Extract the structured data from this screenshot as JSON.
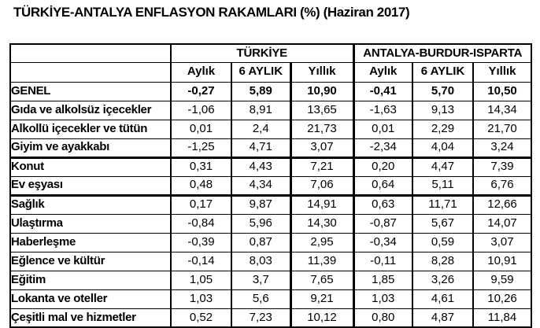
{
  "title": "TÜRKİYE-ANTALYA ENFLASYON RAKAMLARI (%) (Haziran 2017)",
  "colors": {
    "text": "#000000",
    "border": "#000000",
    "background": "#ffffff"
  },
  "table": {
    "group_headers": [
      "TÜRKİYE",
      "ANTALYA-BURDUR-ISPARTA"
    ],
    "sub_headers": [
      "Aylık",
      "6 AYLIK",
      "Yıllık",
      "Aylık",
      "6 AYLIK",
      "Yıllık"
    ],
    "rows": [
      {
        "label": "GENEL",
        "bold": true,
        "values": [
          "-0,27",
          "5,89",
          "10,90",
          "-0,41",
          "5,70",
          "10,50"
        ]
      },
      {
        "label": "Gıda ve alkolsüz içecekler",
        "values": [
          "-1,06",
          "8,91",
          "13,65",
          "-1,63",
          "9,13",
          "14,34"
        ]
      },
      {
        "label": "Alkollü içecekler ve tütün",
        "values": [
          "0,01",
          "2,4",
          "21,73",
          "0,01",
          "2,29",
          "21,70"
        ]
      },
      {
        "label": "Giyim ve ayakkabı",
        "values": [
          "-1,25",
          "4,71",
          "3,07",
          "-2,34",
          "4,04",
          "3,24"
        ]
      },
      {
        "label": "Konut",
        "values": [
          "0,31",
          "4,43",
          "7,21",
          "0,20",
          "4,47",
          "7,39"
        ]
      },
      {
        "label": "Ev eşyası",
        "values": [
          "0,48",
          "4,34",
          "7,06",
          "0,64",
          "5,11",
          "6,76"
        ]
      },
      {
        "label": "Sağlık",
        "values": [
          "0,17",
          "9,87",
          "14,91",
          "0,63",
          "11,71",
          "12,66"
        ]
      },
      {
        "label": "Ulaştırma",
        "values": [
          "-0,84",
          "5,96",
          "14,30",
          "-0,87",
          "5,67",
          "14,07"
        ]
      },
      {
        "label": "Haberleşme",
        "values": [
          "-0,39",
          "0,87",
          "2,95",
          "-0,34",
          "0,59",
          "3,07"
        ]
      },
      {
        "label": "Eğlence ve kültür",
        "values": [
          "-0,14",
          "8,03",
          "11,39",
          "-0,11",
          "8,28",
          "10,91"
        ]
      },
      {
        "label": "Eğitim",
        "values": [
          "1,05",
          "3,7",
          "7,65",
          "1,85",
          "3,26",
          "9,59"
        ]
      },
      {
        "label": "Lokanta ve oteller",
        "values": [
          "1,03",
          "5,6",
          "9,21",
          "1,03",
          "4,61",
          "10,26"
        ]
      },
      {
        "label": "Çeşitli mal ve hizmetler",
        "values": [
          "0,52",
          "7,23",
          "10,12",
          "0,80",
          "4,87",
          "11,84"
        ]
      }
    ]
  }
}
